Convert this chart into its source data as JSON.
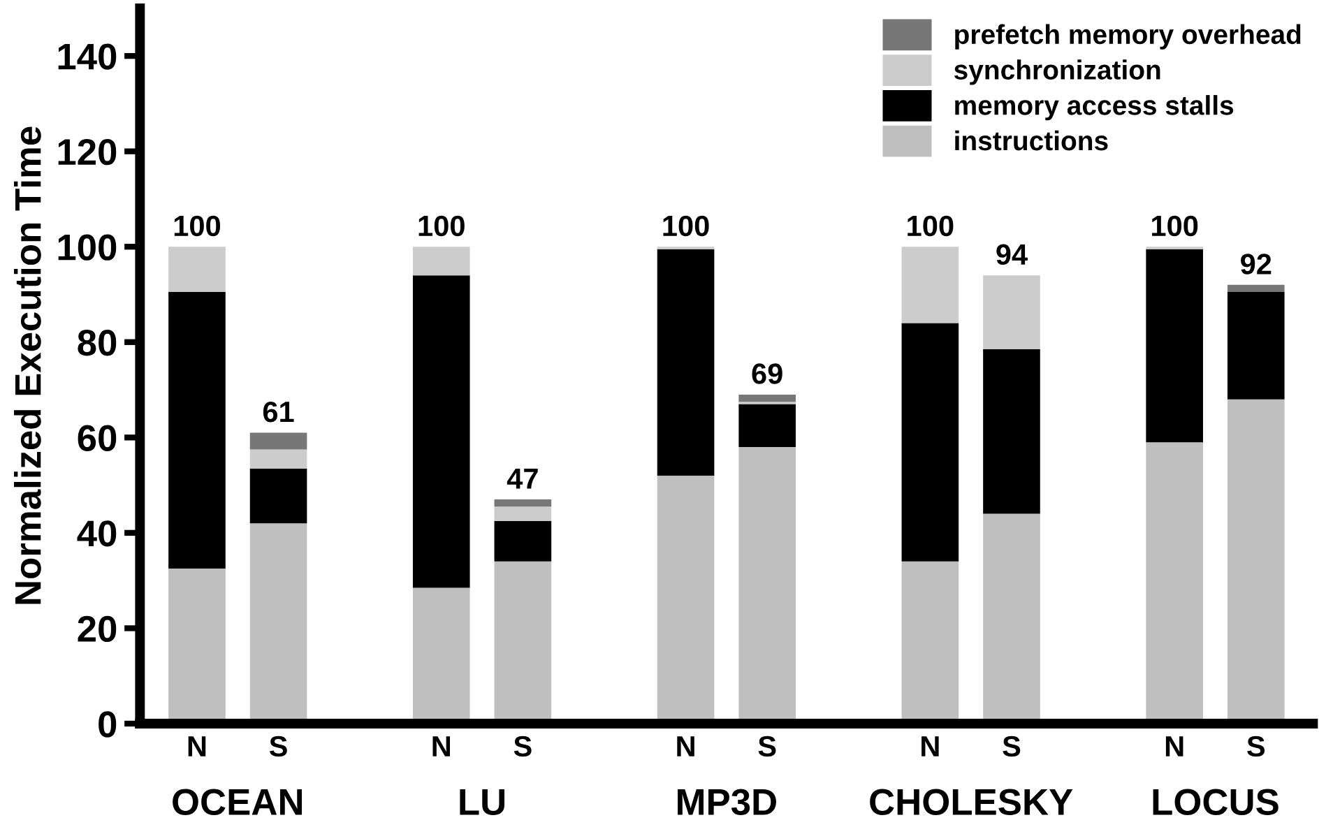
{
  "chart_data": {
    "type": "bar",
    "stacked": true,
    "ylabel": "Normalized Execution Time",
    "categories": [
      "N",
      "S",
      null,
      "N",
      "S",
      null,
      "N",
      "S",
      null,
      "N",
      "S",
      null,
      "N",
      "S"
    ],
    "series": [
      {
        "name": "instructions",
        "color": "#bfbfbf",
        "values": [
          32.5,
          42,
          null,
          28.5,
          34,
          null,
          52,
          58,
          null,
          34,
          44,
          null,
          59,
          68
        ]
      },
      {
        "name": "memory access stalls",
        "color": "#000000",
        "values": [
          58,
          11.5,
          null,
          65.5,
          8.5,
          null,
          47.5,
          9,
          null,
          50,
          34.5,
          null,
          40.5,
          22.5
        ]
      },
      {
        "name": "synchronization",
        "color": "#cccccc",
        "values": [
          9.5,
          4,
          null,
          6,
          3,
          null,
          0.5,
          0.5,
          null,
          16,
          15.5,
          null,
          0.5,
          0
        ]
      },
      {
        "name": "prefetch memory overhead",
        "color": "#777777",
        "values": [
          0,
          3.5,
          null,
          0,
          1.5,
          null,
          0,
          1.5,
          null,
          0,
          0,
          null,
          0,
          1.5
        ]
      }
    ],
    "totals": [
      "100",
      "61",
      null,
      "100",
      "47",
      null,
      "100",
      "69",
      null,
      "100",
      "94",
      null,
      "100",
      "92"
    ],
    "annotations": [
      "OCEAN",
      "LU",
      "MP3D",
      "CHOLESKY",
      "LOCUS"
    ],
    "ylim": [
      0,
      150
    ],
    "yticks": [
      0,
      20,
      40,
      60,
      80,
      100,
      120,
      140
    ],
    "legend": "top right",
    "grid": false
  }
}
